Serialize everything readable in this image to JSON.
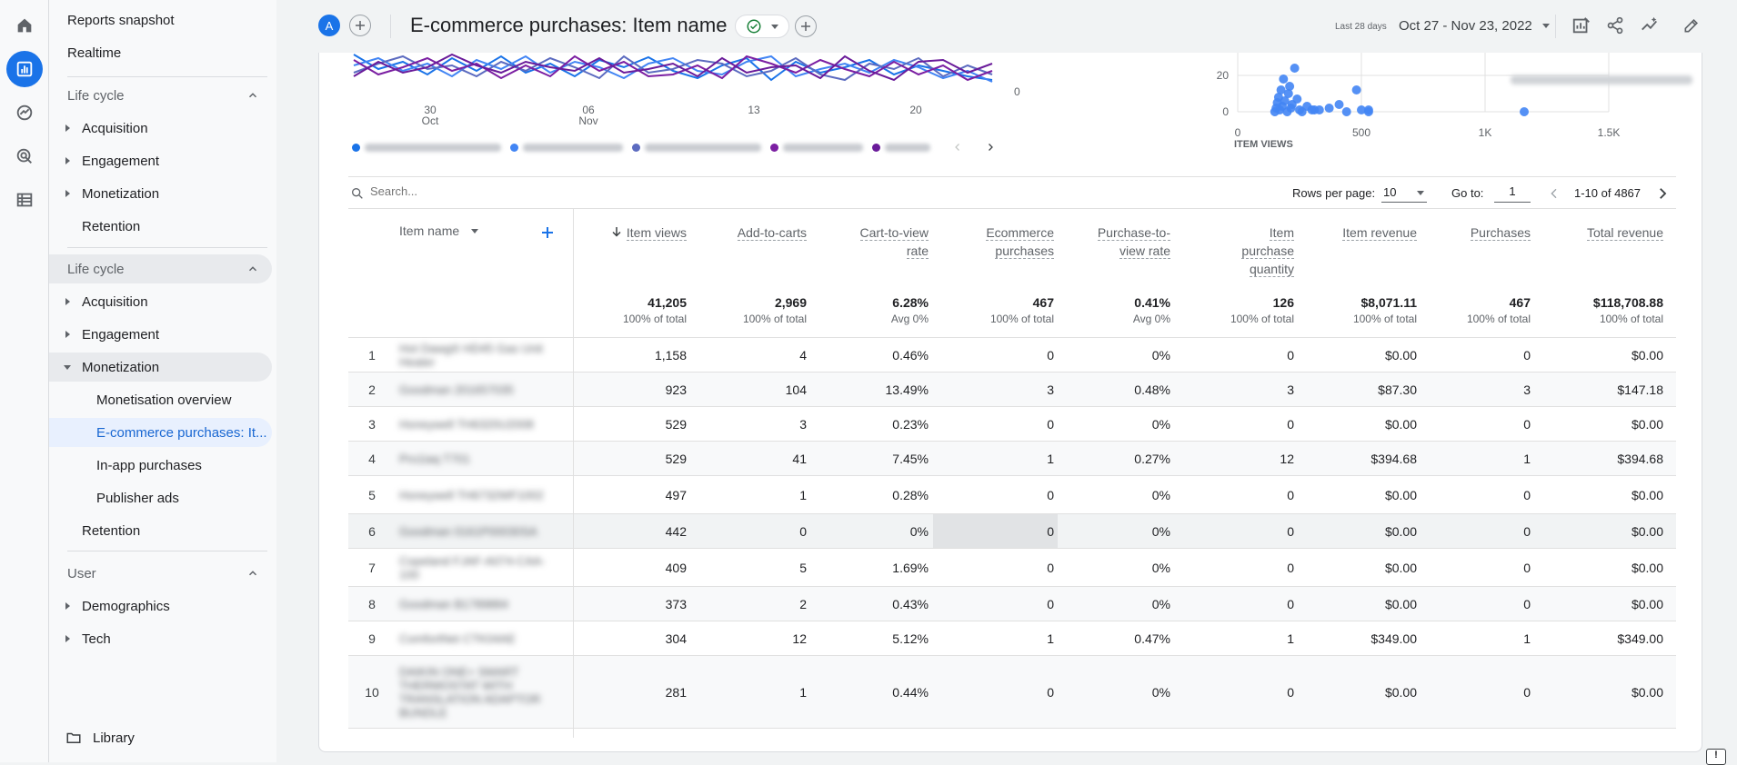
{
  "sidebar": {
    "reports_snapshot": "Reports snapshot",
    "realtime": "Realtime",
    "lifecycle1": {
      "header": "Life cycle",
      "items": [
        "Acquisition",
        "Engagement",
        "Monetization",
        "Retention"
      ]
    },
    "lifecycle2": {
      "header": "Life cycle",
      "items": [
        "Acquisition",
        "Engagement",
        "Monetization"
      ],
      "monetization_children": [
        "Monetisation overview",
        "E-commerce purchases: It...",
        "In-app purchases",
        "Publisher ads"
      ],
      "retention": "Retention"
    },
    "user": {
      "header": "User",
      "items": [
        "Demographics",
        "Tech"
      ]
    },
    "library": "Library"
  },
  "header": {
    "avatar_letter": "A",
    "title": "E-commerce purchases: Item name",
    "date_label": "Last 28 days",
    "date_range": "Oct 27 - Nov 23, 2022"
  },
  "line_chart": {
    "x_ticks": [
      {
        "day": "30",
        "month": "Oct"
      },
      {
        "day": "06",
        "month": "Nov"
      },
      {
        "day": "13",
        "month": ""
      },
      {
        "day": "20",
        "month": ""
      }
    ],
    "y_zero": "0",
    "series_colors": [
      "#1a73e8",
      "#4285f4",
      "#5c6bc0",
      "#7b1fa2",
      "#6a1b9a"
    ]
  },
  "chart_data": {
    "type": "scatter",
    "xlabel": "ITEM VIEWS",
    "x_ticks": [
      "0",
      "500",
      "1K",
      "1.5K"
    ],
    "y_ticks": [
      "0",
      "20"
    ],
    "xlim": [
      0,
      1500
    ],
    "series": [
      {
        "points": [
          [
            150,
            0
          ],
          [
            155,
            2
          ],
          [
            160,
            5
          ],
          [
            165,
            8
          ],
          [
            170,
            1
          ],
          [
            175,
            12
          ],
          [
            180,
            3
          ],
          [
            185,
            18
          ],
          [
            190,
            6
          ],
          [
            200,
            0
          ],
          [
            205,
            10
          ],
          [
            210,
            14
          ],
          [
            215,
            2
          ],
          [
            220,
            4
          ],
          [
            230,
            24
          ],
          [
            240,
            7
          ],
          [
            250,
            1
          ],
          [
            260,
            0
          ],
          [
            280,
            3
          ],
          [
            300,
            1
          ],
          [
            310,
            1
          ],
          [
            330,
            1
          ],
          [
            370,
            2
          ],
          [
            410,
            4
          ],
          [
            440,
            0
          ],
          [
            480,
            12
          ],
          [
            500,
            1
          ],
          [
            529,
            0
          ],
          [
            529,
            1
          ],
          [
            1158,
            0
          ]
        ]
      }
    ]
  },
  "toolbar": {
    "search_placeholder": "Search...",
    "rows_label": "Rows per page:",
    "rows_value": "10",
    "goto_label": "Go to:",
    "goto_value": "1",
    "range": "1-10 of 4867"
  },
  "table": {
    "dimension_header": "Item name",
    "columns": [
      {
        "label": "Item views",
        "total": "41,205",
        "sub": "100% of total"
      },
      {
        "label": "Add-to-carts",
        "total": "2,969",
        "sub": "100% of total"
      },
      {
        "label": "Cart-to-view rate",
        "total": "6.28%",
        "sub": "Avg 0%"
      },
      {
        "label": "Ecommerce purchases",
        "total": "467",
        "sub": "100% of total"
      },
      {
        "label": "Purchase-to-view rate",
        "total": "0.41%",
        "sub": "Avg 0%"
      },
      {
        "label": "Item purchase quantity",
        "total": "126",
        "sub": "100% of total"
      },
      {
        "label": "Item revenue",
        "total": "$8,071.11",
        "sub": "100% of total"
      },
      {
        "label": "Purchases",
        "total": "467",
        "sub": "100% of total"
      },
      {
        "label": "Total revenue",
        "total": "$118,708.88",
        "sub": "100% of total"
      }
    ],
    "rows": [
      {
        "idx": "1",
        "name": "Hot Dawg® HD45 Gas Unit Heater",
        "v": [
          "1,158",
          "4",
          "0.46%",
          "0",
          "0%",
          "0",
          "$0.00",
          "0",
          "$0.00"
        ]
      },
      {
        "idx": "2",
        "name": "Goodman 201657035",
        "v": [
          "923",
          "104",
          "13.49%",
          "3",
          "0.48%",
          "3",
          "$87.30",
          "3",
          "$147.18"
        ]
      },
      {
        "idx": "3",
        "name": "Honeywell TH6320U2008",
        "v": [
          "529",
          "3",
          "0.23%",
          "0",
          "0%",
          "0",
          "$0.00",
          "0",
          "$0.00"
        ]
      },
      {
        "idx": "4",
        "name": "Pro1iaq T701",
        "v": [
          "529",
          "41",
          "7.45%",
          "1",
          "0.27%",
          "12",
          "$394.68",
          "1",
          "$394.68"
        ]
      },
      {
        "idx": "5",
        "name": "Honeywell TH6732WF1002",
        "v": [
          "497",
          "1",
          "0.28%",
          "0",
          "0%",
          "0",
          "$0.00",
          "0",
          "$0.00"
        ]
      },
      {
        "idx": "6",
        "name": "Goodman 0161P00030SA",
        "v": [
          "442",
          "0",
          "0%",
          "0",
          "0%",
          "0",
          "$0.00",
          "0",
          "$0.00"
        ]
      },
      {
        "idx": "7",
        "name": "Copeland FJAF-A074-CAA-100",
        "v": [
          "409",
          "5",
          "1.69%",
          "0",
          "0%",
          "0",
          "$0.00",
          "0",
          "$0.00"
        ]
      },
      {
        "idx": "8",
        "name": "Goodman B1789884",
        "v": [
          "373",
          "2",
          "0.43%",
          "0",
          "0%",
          "0",
          "$0.00",
          "0",
          "$0.00"
        ]
      },
      {
        "idx": "9",
        "name": "ComfortNet CTK04AE",
        "v": [
          "304",
          "12",
          "5.12%",
          "1",
          "0.47%",
          "1",
          "$349.00",
          "1",
          "$349.00"
        ]
      },
      {
        "idx": "10",
        "name": "DAIKIN ONE+ SMART THERMOSTAT WITH TRANSLATION ADAPTOR BUNDLE",
        "v": [
          "281",
          "1",
          "0.44%",
          "0",
          "0%",
          "0",
          "$0.00",
          "0",
          "$0.00"
        ]
      }
    ]
  }
}
